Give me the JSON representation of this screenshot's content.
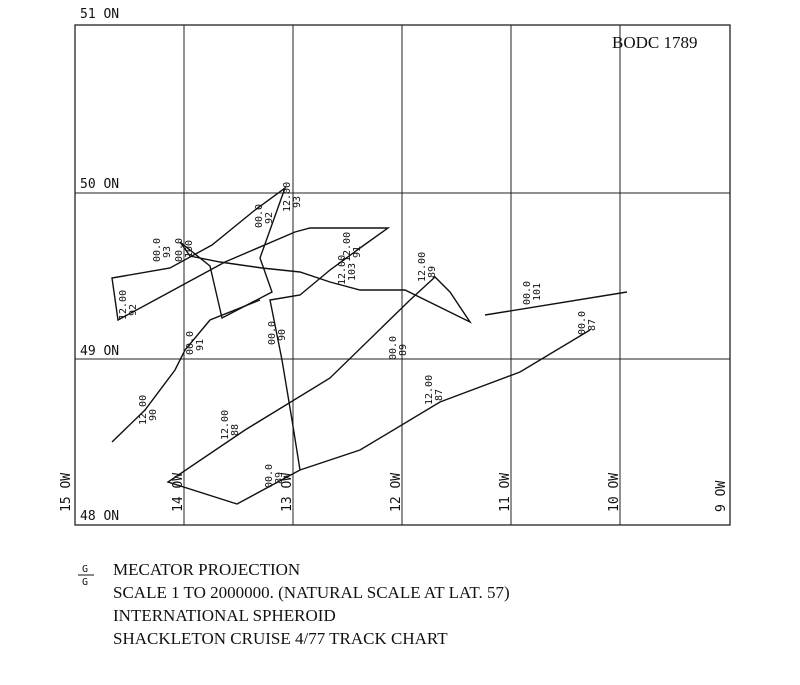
{
  "header": {
    "label": "BODC 1789"
  },
  "latitudes": [
    "51 ON",
    "50 ON",
    "49 ON",
    "48 ON"
  ],
  "longitudes": [
    "15 OW",
    "14 OW",
    "13 OW",
    "12 OW",
    "11 OW",
    "10 OW",
    "9 OW"
  ],
  "track_labels": [
    {
      "time": "12.00",
      "day": "92"
    },
    {
      "time": "00.0",
      "day": "93"
    },
    {
      "time": "00.0",
      "day": "100"
    },
    {
      "time": "12.00",
      "day": "93"
    },
    {
      "time": "00.0",
      "day": "92"
    },
    {
      "time": "12.00",
      "day": "91"
    },
    {
      "time": "12.00",
      "day": "103"
    },
    {
      "time": "12.00",
      "day": "89"
    },
    {
      "time": "00.0",
      "day": "101"
    },
    {
      "time": "00.0",
      "day": "91"
    },
    {
      "time": "00.0",
      "day": "90"
    },
    {
      "time": "00.0",
      "day": "89"
    },
    {
      "time": "00.0",
      "day": "87"
    },
    {
      "time": "12.00",
      "day": "90"
    },
    {
      "time": "12.00",
      "day": "88"
    },
    {
      "time": "12.00",
      "day": "87"
    },
    {
      "time": "00.0",
      "day": "89"
    }
  ],
  "legend": {
    "symbol_top": "G",
    "symbol_bottom": "G"
  },
  "footer": [
    "MECATOR PROJECTION",
    "SCALE 1 TO 2000000. (NATURAL SCALE AT LAT. 57)",
    "INTERNATIONAL SPHEROID",
    "SHACKLETON CRUISE 4/77 TRACK CHART"
  ]
}
